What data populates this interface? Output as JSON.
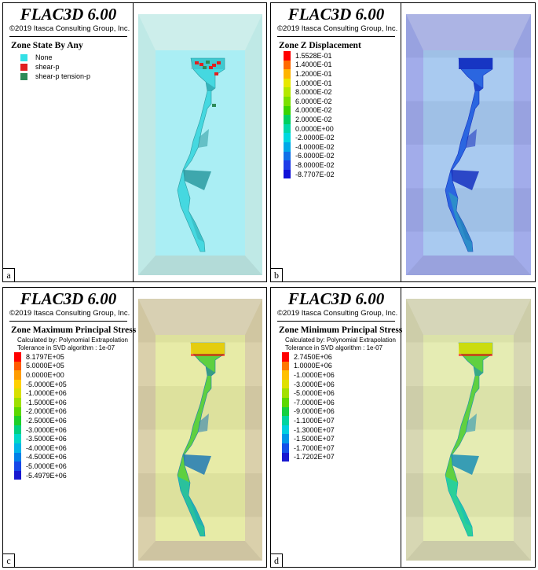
{
  "app_title": "FLAC3D 6.00",
  "copyright": "©2019 Itasca Consulting Group, Inc.",
  "panels": [
    {
      "id": "a",
      "label": "a",
      "legend_title": "Zone State By Any",
      "items": [
        {
          "label": "None",
          "color": "#33e0e6"
        },
        {
          "label": "shear-p",
          "color": "#e02020"
        },
        {
          "label": "shear-p tension-p",
          "color": "#2e8b57"
        }
      ],
      "colors": {
        "outer": "#bfe9e6",
        "inner": "#aaeef4",
        "shaft": "#45d8e0",
        "shade": "#2b9aa0"
      }
    },
    {
      "id": "b",
      "label": "b",
      "legend_title": "Zone Z Displacement",
      "items": [
        {
          "label": "1.5528E-01",
          "color": "#ff0000"
        },
        {
          "label": "1.4000E-01",
          "color": "#ff6a00"
        },
        {
          "label": "1.2000E-01",
          "color": "#ffb400"
        },
        {
          "label": "1.0000E-01",
          "color": "#e8e800"
        },
        {
          "label": "8.0000E-02",
          "color": "#b4e800"
        },
        {
          "label": "6.0000E-02",
          "color": "#7ae000"
        },
        {
          "label": "4.0000E-02",
          "color": "#3ad400"
        },
        {
          "label": "2.0000E-02",
          "color": "#00d060"
        },
        {
          "label": "0.0000E+00",
          "color": "#00d8a8"
        },
        {
          "label": "-2.0000E-02",
          "color": "#00d8e0"
        },
        {
          "label": "-4.0000E-02",
          "color": "#00a8e8"
        },
        {
          "label": "-6.0000E-02",
          "color": "#1070e8"
        },
        {
          "label": "-8.0000E-02",
          "color": "#1e3ce8"
        },
        {
          "label": "-8.7707E-02",
          "color": "#1010d8"
        }
      ],
      "colors": {
        "outer": "#9fa9ea",
        "inner": "#a6c8f0",
        "shaft": "#2b66e0",
        "shade": "#1530c0"
      }
    },
    {
      "id": "c",
      "label": "c",
      "legend_title": "Zone Maximum Principal Stress",
      "calc_note": "Calculated by: Polynomial Extrapolation",
      "tolerance_note": "Tolerance in SVD algorithm : 1e-07",
      "items": [
        {
          "label": "8.1797E+05",
          "color": "#ff0000"
        },
        {
          "label": "5.0000E+05",
          "color": "#ff5a00"
        },
        {
          "label": "0.0000E+00",
          "color": "#ff9c00"
        },
        {
          "label": "-5.0000E+05",
          "color": "#ffd000"
        },
        {
          "label": "-1.0000E+06",
          "color": "#d8e000"
        },
        {
          "label": "-1.5000E+06",
          "color": "#9ee000"
        },
        {
          "label": "-2.0000E+06",
          "color": "#5cd800"
        },
        {
          "label": "-2.5000E+06",
          "color": "#1ed028"
        },
        {
          "label": "-3.0000E+06",
          "color": "#00d080"
        },
        {
          "label": "-3.5000E+06",
          "color": "#00d8c8"
        },
        {
          "label": "-4.0000E+06",
          "color": "#00b4e8"
        },
        {
          "label": "-4.5000E+06",
          "color": "#0080e8"
        },
        {
          "label": "-5.0000E+06",
          "color": "#1648e8"
        },
        {
          "label": "-5.4979E+06",
          "color": "#1818d0"
        }
      ],
      "colors": {
        "outer": "#d9cfa8",
        "inner": "#e6eba4",
        "shaft": "#5ed040",
        "shade": "#1e7ab4"
      }
    },
    {
      "id": "d",
      "label": "d",
      "legend_title": "Zone Minimum Principal Stress",
      "calc_note": "Calculated by: Polynomial Extrapolation",
      "tolerance_note": "Tolerance in SVD algorithm : 1e-07",
      "items": [
        {
          "label": "2.7450E+06",
          "color": "#ff0000"
        },
        {
          "label": "1.0000E+06",
          "color": "#ff7800"
        },
        {
          "label": "-1.0000E+06",
          "color": "#ffc000"
        },
        {
          "label": "-3.0000E+06",
          "color": "#e0e000"
        },
        {
          "label": "-5.0000E+06",
          "color": "#a4e000"
        },
        {
          "label": "-7.0000E+06",
          "color": "#5cd800"
        },
        {
          "label": "-9.0000E+06",
          "color": "#14d040"
        },
        {
          "label": "-1.1000E+07",
          "color": "#00d4a0"
        },
        {
          "label": "-1.3000E+07",
          "color": "#00d0e0"
        },
        {
          "label": "-1.5000E+07",
          "color": "#0098e8"
        },
        {
          "label": "-1.7000E+07",
          "color": "#1450e8"
        },
        {
          "label": "-1.7202E+07",
          "color": "#1818d0"
        }
      ],
      "colors": {
        "outer": "#d6d6b0",
        "inner": "#e4ecb0",
        "shaft": "#60d040",
        "shade": "#1a8fb4"
      }
    }
  ]
}
